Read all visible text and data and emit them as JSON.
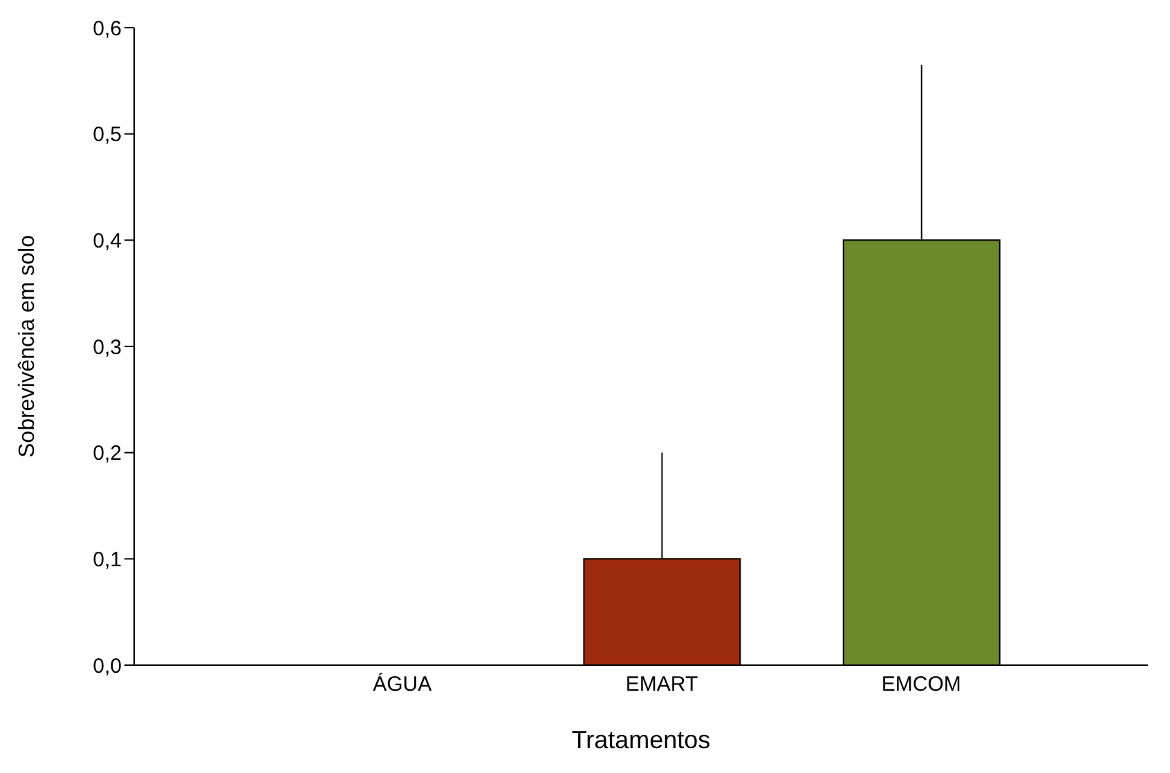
{
  "chart_data": {
    "type": "bar",
    "xlabel": "Tratamentos",
    "ylabel": "Sobrevivência em solo",
    "categories": [
      "ÁGUA",
      "EMART",
      "EMCOM"
    ],
    "values": [
      0,
      0.1,
      0.4
    ],
    "colors": [
      "#9c2a0c",
      "#9c2a0c",
      "#6b8a2a"
    ],
    "errors": [
      null,
      [
        0.1,
        0.2
      ],
      [
        0.4,
        0.565
      ]
    ],
    "ylim": [
      0,
      0.6
    ],
    "yticks": [
      {
        "value": 0,
        "label": "0,0"
      },
      {
        "value": 0.1,
        "label": "0,1"
      },
      {
        "value": 0.2,
        "label": "0,2"
      },
      {
        "value": 0.3,
        "label": "0,3"
      },
      {
        "value": 0.4,
        "label": "0,4"
      },
      {
        "value": 0.5,
        "label": "0,5"
      },
      {
        "value": 0.6,
        "label": "0,6"
      }
    ],
    "grid": false,
    "legend": false
  }
}
